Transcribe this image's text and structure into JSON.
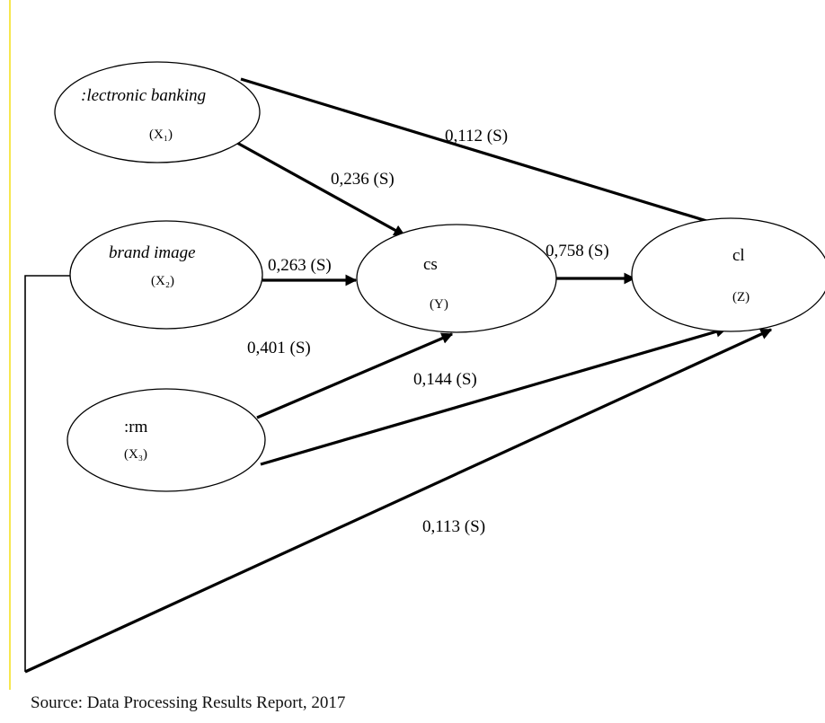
{
  "colors": {
    "margin_bar": "#f7e74f",
    "ink": "#000000",
    "background": "#ffffff"
  },
  "nodes": {
    "x1": {
      "name": "electronic banking",
      "name_visible": ":lectronic banking",
      "sub": "(X₁)"
    },
    "x2": {
      "name": "brand image",
      "sub": "(X₂)"
    },
    "x3": {
      "name": "crm",
      "name_visible": ":rm",
      "sub": "(X₃)"
    },
    "y": {
      "name": "cs",
      "sub": "(Y)"
    },
    "z": {
      "name": "cl",
      "sub": "(Z)"
    }
  },
  "edges": [
    {
      "from": "x1",
      "to": "z",
      "coef": "0,112 (S)"
    },
    {
      "from": "x1",
      "to": "y",
      "coef": "0,236 (S)"
    },
    {
      "from": "x2",
      "to": "y",
      "coef": "0,263 (S)"
    },
    {
      "from": "y",
      "to": "z",
      "coef": "0,758 (S)"
    },
    {
      "from": "x3",
      "to": "y",
      "coef": "0,401 (S)"
    },
    {
      "from": "x3",
      "to": "z",
      "coef": "0,144 (S)"
    },
    {
      "from": "x2",
      "to": "z",
      "coef": "0,113 (S)"
    }
  ],
  "source": "Source: Data Processing Results Report, 2017"
}
